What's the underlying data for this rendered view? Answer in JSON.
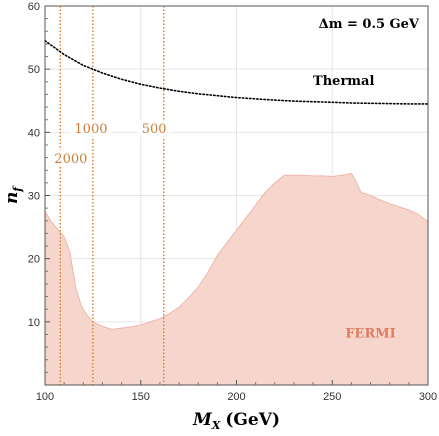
{
  "chart_data": {
    "type": "area",
    "xlabel": "M_X (GeV)",
    "xlabel_main": "M",
    "xlabel_sub": "X",
    "xlabel_unit": "(GeV)",
    "ylabel": "n_f",
    "ylabel_main": "n",
    "ylabel_sub": "f",
    "xlim": [
      100,
      300
    ],
    "ylim": [
      0,
      60
    ],
    "xticks": [
      100,
      150,
      200,
      250,
      300
    ],
    "yticks": [
      10,
      20,
      30,
      40,
      50,
      60
    ],
    "grid": true,
    "annotation": "Δm = 0.5 GeV",
    "series": [
      {
        "name": "FERMI",
        "kind": "filled-region",
        "color": "#f6d6cc",
        "edge_color": "#eeb7a8",
        "label_color": "#e07a5f",
        "label_x": 270,
        "label_y": 7.5,
        "x": [
          100,
          103,
          107,
          110,
          113,
          116,
          119,
          122,
          125,
          130,
          135,
          140,
          145,
          150,
          155,
          160,
          165,
          170,
          175,
          180,
          185,
          190,
          195,
          200,
          205,
          210,
          215,
          220,
          225,
          230,
          235,
          240,
          245,
          250,
          255,
          260,
          262,
          265,
          270,
          275,
          280,
          285,
          290,
          295,
          300
        ],
        "y": [
          27.5,
          26.0,
          24.5,
          23.5,
          21.0,
          15.5,
          12.5,
          11.0,
          10.0,
          9.3,
          8.8,
          9.0,
          9.2,
          9.5,
          10.0,
          10.5,
          11.3,
          12.3,
          13.8,
          15.5,
          17.8,
          20.5,
          22.5,
          24.5,
          26.5,
          28.5,
          30.5,
          32.0,
          33.2,
          33.2,
          33.2,
          33.1,
          33.1,
          33.0,
          33.2,
          33.5,
          32.5,
          30.5,
          30.0,
          29.3,
          28.7,
          28.2,
          27.7,
          27.0,
          25.8
        ]
      },
      {
        "name": "Thermal",
        "kind": "dotted-line",
        "color": "#000000",
        "label_x": 256,
        "label_y": 47.5,
        "x": [
          100,
          110,
          120,
          130,
          140,
          150,
          160,
          170,
          180,
          190,
          200,
          210,
          220,
          230,
          240,
          250,
          260,
          270,
          280,
          290,
          300
        ],
        "y": [
          54.5,
          52.3,
          50.6,
          49.4,
          48.4,
          47.6,
          47.0,
          46.5,
          46.1,
          45.8,
          45.5,
          45.3,
          45.1,
          44.95,
          44.85,
          44.75,
          44.65,
          44.6,
          44.55,
          44.5,
          44.5
        ]
      }
    ],
    "vertical_lines": [
      {
        "label": "2000",
        "x": 108,
        "label_x": 113.5,
        "label_y": 35.5
      },
      {
        "label": "1000",
        "x": 125,
        "label_x": 124,
        "label_y": 40.2
      },
      {
        "label": "500",
        "x": 162,
        "label_x": 157,
        "label_y": 40.2
      }
    ],
    "vertical_line_color": "#e07a1f",
    "vertical_label_color": "#c9803a"
  }
}
